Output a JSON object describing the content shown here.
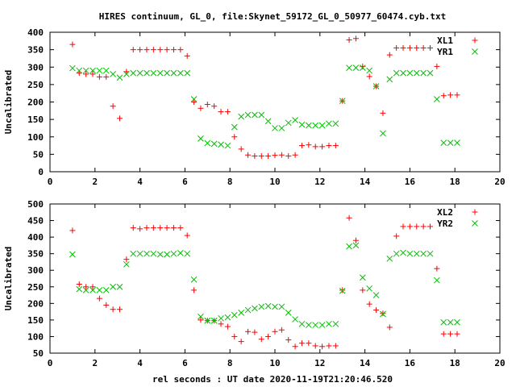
{
  "title": "HIRES continuum, GL_0, file:Skynet_59172_GL_0_50977_60474.cyb.txt",
  "xlabel": "rel seconds : UT date 2020-11-19T21:20:46.520",
  "colors": {
    "red_series": "#ff0000",
    "green_series": "#00c000",
    "axis": "#000000"
  },
  "chart_data": [
    {
      "type": "scatter",
      "title": "",
      "xlabel": "",
      "ylabel": "Uncalibrated",
      "xlim": [
        0,
        20
      ],
      "ylim": [
        0,
        400
      ],
      "xticks": [
        "0",
        "2",
        "4",
        "6",
        "8",
        "10",
        "12",
        "14",
        "16",
        "18",
        "20"
      ],
      "yticks": [
        "0",
        "50",
        "100",
        "150",
        "200",
        "250",
        "300",
        "350",
        "400"
      ],
      "legend_position": "top-right",
      "series": [
        {
          "name": "XL1",
          "marker": "plus",
          "color": "#ff0000",
          "x": [
            1.0,
            1.3,
            1.6,
            1.9,
            2.2,
            2.5,
            2.8,
            3.1,
            3.4,
            3.7,
            4.0,
            4.3,
            4.6,
            4.9,
            5.2,
            5.5,
            5.8,
            6.1,
            6.4,
            6.7,
            7.0,
            7.3,
            7.6,
            7.9,
            8.2,
            8.5,
            8.8,
            9.1,
            9.4,
            9.7,
            10.0,
            10.3,
            10.6,
            10.9,
            11.2,
            11.5,
            11.8,
            12.1,
            12.4,
            12.7,
            13.0,
            13.3,
            13.6,
            13.9,
            14.2,
            14.5,
            14.8,
            15.1,
            15.4,
            15.7,
            16.0,
            16.3,
            16.6,
            16.9,
            17.2,
            17.5,
            17.8,
            18.1
          ],
          "values": [
            365,
            283,
            280,
            280,
            272,
            272,
            188,
            153,
            287,
            350,
            350,
            350,
            350,
            350,
            350,
            350,
            350,
            332,
            200,
            182,
            193,
            188,
            172,
            172,
            100,
            65,
            48,
            45,
            45,
            45,
            47,
            48,
            45,
            48,
            75,
            77,
            72,
            72,
            75,
            75,
            203,
            378,
            382,
            302,
            273,
            245,
            168,
            335,
            355,
            355,
            355,
            355,
            355,
            355,
            302,
            218,
            220,
            220
          ]
        },
        {
          "name": "YR1",
          "marker": "cross",
          "color": "#00c000",
          "x": [
            1.0,
            1.3,
            1.6,
            1.9,
            2.2,
            2.5,
            2.8,
            3.1,
            3.4,
            3.7,
            4.0,
            4.3,
            4.6,
            4.9,
            5.2,
            5.5,
            5.8,
            6.1,
            6.4,
            6.7,
            7.0,
            7.3,
            7.6,
            7.9,
            8.2,
            8.5,
            8.8,
            9.1,
            9.4,
            9.7,
            10.0,
            10.3,
            10.6,
            10.9,
            11.2,
            11.5,
            11.8,
            12.1,
            12.4,
            12.7,
            13.0,
            13.3,
            13.6,
            13.9,
            14.2,
            14.5,
            14.8,
            15.1,
            15.4,
            15.7,
            16.0,
            16.3,
            16.6,
            16.9,
            17.2,
            17.5,
            17.8,
            18.1
          ],
          "values": [
            297,
            290,
            290,
            290,
            290,
            290,
            280,
            270,
            280,
            283,
            283,
            283,
            283,
            283,
            283,
            283,
            283,
            283,
            208,
            95,
            82,
            80,
            78,
            75,
            128,
            158,
            163,
            163,
            163,
            145,
            125,
            125,
            140,
            148,
            135,
            133,
            133,
            133,
            138,
            138,
            203,
            298,
            298,
            298,
            290,
            245,
            110,
            265,
            283,
            283,
            283,
            283,
            283,
            283,
            208,
            83,
            83,
            83
          ]
        }
      ]
    },
    {
      "type": "scatter",
      "title": "",
      "xlabel": "rel seconds : UT date 2020-11-19T21:20:46.520",
      "ylabel": "Uncalibrated",
      "xlim": [
        0,
        20
      ],
      "ylim": [
        50,
        500
      ],
      "xticks": [
        "0",
        "2",
        "4",
        "6",
        "8",
        "10",
        "12",
        "14",
        "16",
        "18",
        "20"
      ],
      "yticks": [
        "50",
        "100",
        "150",
        "200",
        "250",
        "300",
        "350",
        "400",
        "450",
        "500"
      ],
      "legend_position": "top-right",
      "series": [
        {
          "name": "XL2",
          "marker": "plus",
          "color": "#ff0000",
          "x": [
            1.0,
            1.3,
            1.6,
            1.9,
            2.2,
            2.5,
            2.8,
            3.1,
            3.4,
            3.7,
            4.0,
            4.3,
            4.6,
            4.9,
            5.2,
            5.5,
            5.8,
            6.1,
            6.4,
            6.7,
            7.0,
            7.3,
            7.6,
            7.9,
            8.2,
            8.5,
            8.8,
            9.1,
            9.4,
            9.7,
            10.0,
            10.3,
            10.6,
            10.9,
            11.2,
            11.5,
            11.8,
            12.1,
            12.4,
            12.7,
            13.0,
            13.3,
            13.6,
            13.9,
            14.2,
            14.5,
            14.8,
            15.1,
            15.4,
            15.7,
            16.0,
            16.3,
            16.6,
            16.9,
            17.2,
            17.5,
            17.8,
            18.1
          ],
          "values": [
            420,
            258,
            250,
            250,
            215,
            195,
            182,
            182,
            333,
            428,
            425,
            428,
            428,
            428,
            428,
            428,
            428,
            405,
            240,
            150,
            148,
            148,
            138,
            130,
            100,
            85,
            115,
            113,
            92,
            100,
            115,
            120,
            90,
            70,
            80,
            80,
            72,
            70,
            72,
            72,
            240,
            458,
            390,
            240,
            198,
            180,
            170,
            128,
            403,
            432,
            432,
            432,
            432,
            432,
            305,
            108,
            108,
            108
          ]
        },
        {
          "name": "YR2",
          "marker": "cross",
          "color": "#00c000",
          "x": [
            1.0,
            1.3,
            1.6,
            1.9,
            2.2,
            2.5,
            2.8,
            3.1,
            3.4,
            3.7,
            4.0,
            4.3,
            4.6,
            4.9,
            5.2,
            5.5,
            5.8,
            6.1,
            6.4,
            6.7,
            7.0,
            7.3,
            7.6,
            7.9,
            8.2,
            8.5,
            8.8,
            9.1,
            9.4,
            9.7,
            10.0,
            10.3,
            10.6,
            10.9,
            11.2,
            11.5,
            11.8,
            12.1,
            12.4,
            12.7,
            13.0,
            13.3,
            13.6,
            13.9,
            14.2,
            14.5,
            14.8,
            15.1,
            15.4,
            15.7,
            16.0,
            16.3,
            16.6,
            16.9,
            17.2,
            17.5,
            17.8,
            18.1
          ],
          "values": [
            348,
            243,
            240,
            240,
            240,
            240,
            250,
            250,
            318,
            350,
            350,
            350,
            350,
            348,
            348,
            350,
            352,
            350,
            272,
            160,
            148,
            148,
            155,
            158,
            165,
            172,
            180,
            185,
            190,
            192,
            190,
            190,
            172,
            152,
            138,
            135,
            135,
            135,
            138,
            138,
            238,
            372,
            375,
            278,
            245,
            225,
            168,
            335,
            350,
            353,
            350,
            350,
            350,
            350,
            270,
            143,
            143,
            143
          ]
        }
      ]
    }
  ]
}
